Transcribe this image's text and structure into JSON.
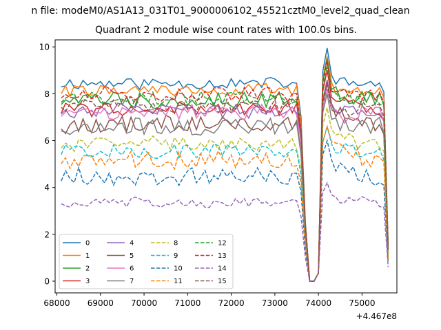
{
  "figure": {
    "suptitle": "n file: modeM0/AS1A13_031T01_9000006102_45521cztM0_level2_quad_clean"
  },
  "chart_data": {
    "type": "line",
    "title": "Quadrant 2 module wise count rates with 100.0s bins.",
    "xlabel": "",
    "ylabel": "",
    "x_offset_label": "+4.467e8",
    "xlim": [
      67960,
      75800
    ],
    "ylim": [
      -0.5,
      10.3
    ],
    "xticks": [
      68000,
      69000,
      70000,
      71000,
      72000,
      73000,
      74000,
      75000
    ],
    "yticks": [
      0,
      2,
      4,
      6,
      8,
      10
    ],
    "grid": false,
    "legend": {
      "placement": "lower-left",
      "columns": 4
    },
    "x": {
      "start": 68100,
      "step": 100,
      "count": 76
    },
    "series": [
      {
        "name": "0",
        "color": "#1f77b4",
        "style": "solid",
        "base": 8.45,
        "amp": 0.25,
        "seed": 11,
        "peak": 9.95
      },
      {
        "name": "1",
        "color": "#ff7f0e",
        "style": "solid",
        "base": 8.15,
        "amp": 0.25,
        "seed": 22,
        "peak": 9.6
      },
      {
        "name": "2",
        "color": "#2ca02c",
        "style": "solid",
        "base": 7.75,
        "amp": 0.35,
        "seed": 33,
        "peak": 9.5
      },
      {
        "name": "3",
        "color": "#d62728",
        "style": "solid",
        "base": 7.35,
        "amp": 0.3,
        "seed": 44,
        "peak": 9.0
      },
      {
        "name": "4",
        "color": "#9467bd",
        "style": "solid",
        "base": 7.3,
        "amp": 0.3,
        "seed": 55,
        "peak": 8.6
      },
      {
        "name": "5",
        "color": "#8c564b",
        "style": "solid",
        "base": 6.7,
        "amp": 0.35,
        "seed": 66,
        "peak": 8.5
      },
      {
        "name": "6",
        "color": "#e377c2",
        "style": "solid",
        "base": 7.2,
        "amp": 0.3,
        "seed": 77,
        "peak": 8.2
      },
      {
        "name": "7",
        "color": "#7f7f7f",
        "style": "solid",
        "base": 6.6,
        "amp": 0.35,
        "seed": 88,
        "peak": 8.0
      },
      {
        "name": "8",
        "color": "#bcbd22",
        "style": "dashed",
        "base": 5.85,
        "amp": 0.3,
        "seed": 99,
        "peak": 7.4
      },
      {
        "name": "9",
        "color": "#17becf",
        "style": "dashed",
        "base": 5.55,
        "amp": 0.3,
        "seed": 101,
        "peak": 6.6
      },
      {
        "name": "10",
        "color": "#1f77b4",
        "style": "dashed",
        "base": 4.45,
        "amp": 0.35,
        "seed": 111,
        "peak": 6.0
      },
      {
        "name": "11",
        "color": "#ff7f0e",
        "style": "dashed",
        "base": 5.2,
        "amp": 0.35,
        "seed": 121,
        "peak": 6.6
      },
      {
        "name": "12",
        "color": "#2ca02c",
        "style": "dashed",
        "base": 7.8,
        "amp": 0.3,
        "seed": 131,
        "peak": 9.2
      },
      {
        "name": "13",
        "color": "#d62728",
        "style": "dashed",
        "base": 8.0,
        "amp": 0.3,
        "seed": 141,
        "peak": 9.4
      },
      {
        "name": "14",
        "color": "#9467bd",
        "style": "dashed",
        "base": 3.35,
        "amp": 0.2,
        "seed": 151,
        "peak": 4.2
      },
      {
        "name": "15",
        "color": "#8c564b",
        "style": "dashed",
        "base": 7.5,
        "amp": 0.3,
        "seed": 161,
        "peak": 8.4
      }
    ]
  }
}
